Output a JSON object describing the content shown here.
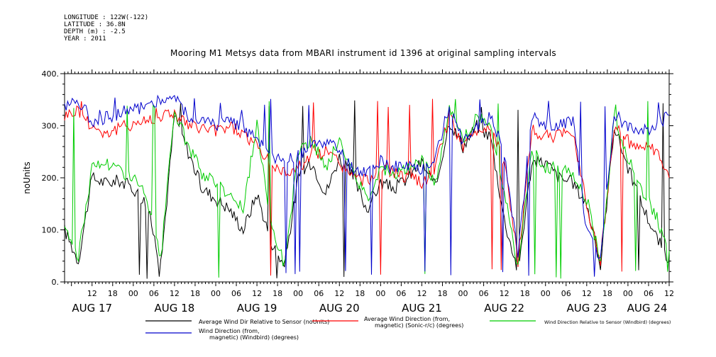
{
  "meta": {
    "longitude": "LONGITUDE : 122W(-122)",
    "latitude": "LATITUDE : 36.8N",
    "depth": "DEPTH (m) : -2.5",
    "year": "YEAR : 2011"
  },
  "chart_data": {
    "type": "line",
    "title": "Mooring M1 Metsys data from MBARI instrument id 1396 at original sampling intervals",
    "ylabel": "noUnits",
    "xlabel": "",
    "ylim": [
      0,
      400
    ],
    "yticks": [
      "0.",
      "100.",
      "200.",
      "300.",
      "400."
    ],
    "xlim_hours": [
      0,
      176
    ],
    "hour_ticks": [
      "12",
      "18",
      "00",
      "06",
      "12",
      "18",
      "00",
      "06",
      "12",
      "18",
      "00",
      "06",
      "12",
      "18",
      "00",
      "06",
      "12",
      "18",
      "00",
      "06",
      "12",
      "18",
      "00",
      "06",
      "12",
      "18",
      "00",
      "06",
      "12"
    ],
    "date_labels": [
      "AUG 17",
      "AUG 18",
      "AUG 19",
      "AUG 20",
      "AUG 21",
      "AUG 22",
      "AUG 23",
      "AUG 24"
    ],
    "grid": false,
    "series": [
      {
        "name": "Average Wind Dir Relative to Sensor (noUnits)",
        "color": "#000000",
        "x": [
          0,
          4,
          8,
          12,
          16,
          20,
          24,
          28,
          32,
          36,
          40,
          44,
          48,
          52,
          56,
          60,
          64,
          68,
          72,
          76,
          80,
          84,
          88,
          92,
          96,
          100,
          104,
          108,
          112,
          116,
          120,
          124,
          128,
          132,
          136,
          140,
          144,
          148,
          152,
          156,
          160,
          164,
          168,
          172,
          176
        ],
        "y": [
          100,
          40,
          200,
          190,
          195,
          180,
          150,
          30,
          320,
          250,
          180,
          160,
          140,
          100,
          170,
          80,
          30,
          200,
          230,
          170,
          240,
          200,
          140,
          190,
          180,
          200,
          230,
          180,
          310,
          260,
          300,
          280,
          120,
          20,
          230,
          230,
          200,
          190,
          150,
          30,
          300,
          220,
          150,
          90,
          40
        ]
      },
      {
        "name": "Average Wind Direction (from, magnetic) (Sonic-r/c) (degrees)",
        "color": "#ff0000",
        "x": [
          0,
          4,
          8,
          12,
          16,
          20,
          24,
          28,
          32,
          36,
          40,
          44,
          48,
          52,
          56,
          60,
          64,
          68,
          72,
          76,
          80,
          84,
          88,
          92,
          96,
          100,
          104,
          108,
          112,
          116,
          120,
          124,
          128,
          132,
          136,
          140,
          144,
          148,
          152,
          156,
          160,
          164,
          168,
          172,
          176
        ],
        "y": [
          320,
          330,
          300,
          285,
          295,
          305,
          310,
          320,
          325,
          300,
          295,
          290,
          300,
          285,
          260,
          225,
          210,
          220,
          245,
          250,
          230,
          200,
          195,
          215,
          210,
          200,
          190,
          220,
          320,
          260,
          290,
          300,
          230,
          40,
          290,
          280,
          280,
          290,
          150,
          40,
          300,
          270,
          260,
          250,
          200
        ]
      },
      {
        "name": "Wind Direction Relative to Sensor (Windbird) (degrees)",
        "color": "#00cc00",
        "x": [
          0,
          4,
          8,
          12,
          16,
          20,
          24,
          28,
          32,
          36,
          40,
          44,
          48,
          52,
          56,
          60,
          64,
          68,
          72,
          76,
          80,
          84,
          88,
          92,
          96,
          100,
          104,
          108,
          112,
          116,
          120,
          124,
          128,
          132,
          136,
          140,
          144,
          148,
          152,
          156,
          160,
          164,
          168,
          172,
          176
        ],
        "y": [
          110,
          50,
          220,
          230,
          215,
          200,
          160,
          40,
          330,
          260,
          210,
          190,
          170,
          140,
          300,
          120,
          30,
          250,
          270,
          220,
          270,
          210,
          160,
          220,
          210,
          215,
          240,
          190,
          330,
          270,
          320,
          300,
          170,
          30,
          250,
          220,
          215,
          210,
          160,
          40,
          310,
          240,
          180,
          130,
          60
        ]
      },
      {
        "name": "Wind Direction (from, magnetic) (Windbird) (degrees)",
        "color": "#0000cc",
        "x": [
          0,
          4,
          8,
          12,
          16,
          20,
          24,
          28,
          32,
          36,
          40,
          44,
          48,
          52,
          56,
          60,
          64,
          68,
          72,
          76,
          80,
          84,
          88,
          92,
          96,
          100,
          104,
          108,
          112,
          116,
          120,
          124,
          128,
          132,
          136,
          140,
          144,
          148,
          152,
          156,
          160,
          164,
          168,
          172,
          176
        ],
        "y": [
          340,
          350,
          310,
          315,
          325,
          330,
          340,
          350,
          355,
          320,
          310,
          300,
          310,
          300,
          270,
          240,
          230,
          240,
          260,
          270,
          250,
          215,
          210,
          230,
          220,
          220,
          215,
          240,
          340,
          270,
          300,
          320,
          250,
          50,
          320,
          300,
          300,
          310,
          100,
          40,
          320,
          300,
          290,
          300,
          320
        ]
      }
    ],
    "legend": [
      "Average Wind Dir Relative to Sensor (noUnits)",
      [
        "Average Wind Direction (from,",
        "magnetic) (Sonic-r/c) (degrees)"
      ],
      "Wind Direction Relative to Sensor (Windbird) (degrees)",
      [
        "Wind Direction (from,",
        "magnetic) (Windbird) (degrees)"
      ]
    ]
  }
}
